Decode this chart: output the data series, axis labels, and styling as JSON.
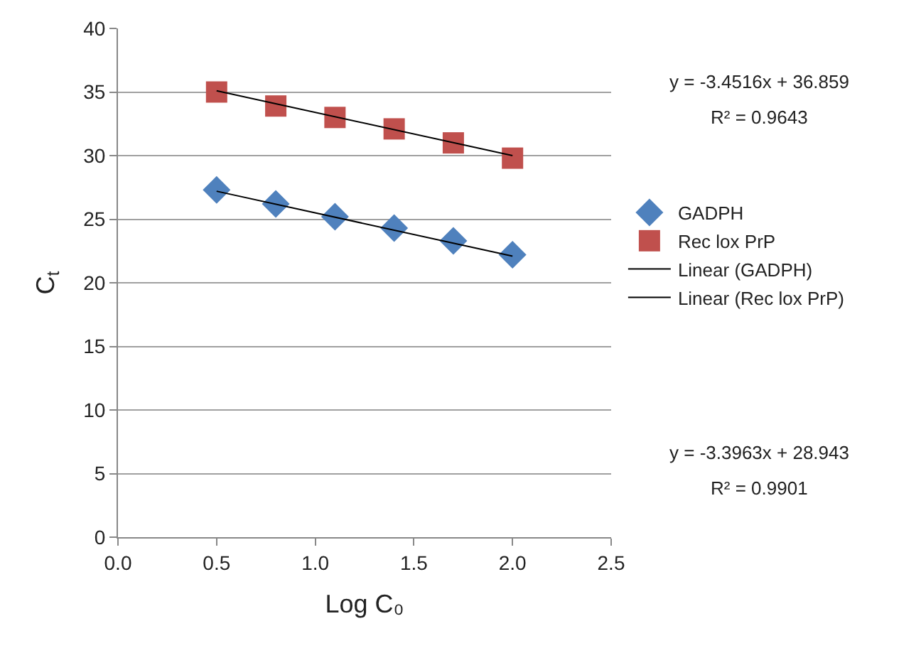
{
  "chart_data": {
    "type": "scatter",
    "xlabel": "Log C₀",
    "ylabel": "C$_{t}$",
    "xlim": [
      0,
      2.5
    ],
    "xticks": [
      {
        "value": 0,
        "label": "0.0"
      },
      {
        "value": 0.5,
        "label": "0.5"
      },
      {
        "value": 1,
        "label": "1.0"
      },
      {
        "value": 1.5,
        "label": "1.5"
      },
      {
        "value": 2,
        "label": "2.0"
      },
      {
        "value": 2.5,
        "label": "2.5"
      }
    ],
    "ylim": [
      0,
      40
    ],
    "yticks": [
      0,
      5,
      10,
      15,
      20,
      25,
      30,
      35,
      40
    ],
    "grid": "y",
    "legend": "right",
    "series": [
      {
        "name": "GADPH",
        "marker": "diamond",
        "color": "#4f81bd",
        "x": [
          0.5,
          0.8,
          1.1,
          1.4,
          1.7,
          2.0
        ],
        "values": [
          27.3,
          26.2,
          25.2,
          24.3,
          23.3,
          22.2
        ]
      },
      {
        "name": "Rec lox PrP",
        "marker": "square",
        "color": "#c0504d",
        "x": [
          0.5,
          0.8,
          1.1,
          1.4,
          1.7,
          2.0
        ],
        "values": [
          35.0,
          33.9,
          33.0,
          32.1,
          31.0,
          29.8
        ]
      },
      {
        "name": "Linear (GADPH)",
        "type": "line",
        "marker": "none",
        "color": "#000000",
        "x": [
          0.5,
          2.0
        ],
        "values": [
          27.2,
          22.1
        ]
      },
      {
        "name": "Linear (Rec lox PrP)",
        "type": "line",
        "marker": "none",
        "color": "#000000",
        "x": [
          0.5,
          2.0
        ],
        "values": [
          35.1,
          30.0
        ]
      }
    ],
    "annotations": [
      "y = -3.4516x + 36.859",
      "R² = 0.9643",
      "y = -3.3963x + 28.943",
      "R² = 0.9901"
    ]
  }
}
